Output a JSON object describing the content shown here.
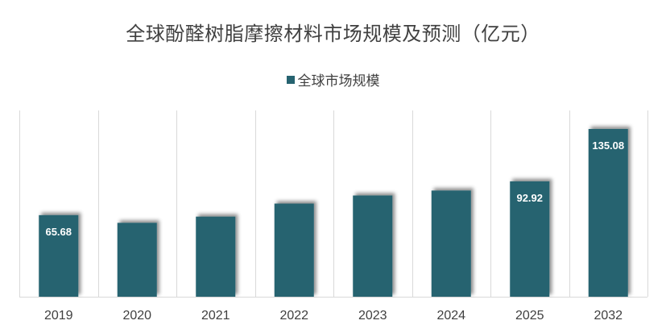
{
  "chart_data": {
    "type": "bar",
    "title": "全球酚醛树脂摩擦材料市场规模及预测（亿元）",
    "categories": [
      "2019",
      "2020",
      "2021",
      "2022",
      "2023",
      "2024",
      "2025",
      "2032"
    ],
    "series": [
      {
        "name": "全球市场规模",
        "values": [
          65.68,
          59.5,
          64.5,
          75.0,
          81.5,
          85.5,
          92.92,
          135.08
        ],
        "data_labels": [
          "65.68",
          "",
          "",
          "",
          "",
          "",
          "92.92",
          "135.08"
        ]
      }
    ],
    "ylim": [
      0,
      150
    ],
    "grid": "vertical-separators",
    "legend_position": "top-center",
    "colors": {
      "bar": "#266370",
      "grid": "#d9d9d9",
      "text": "#404040"
    }
  }
}
